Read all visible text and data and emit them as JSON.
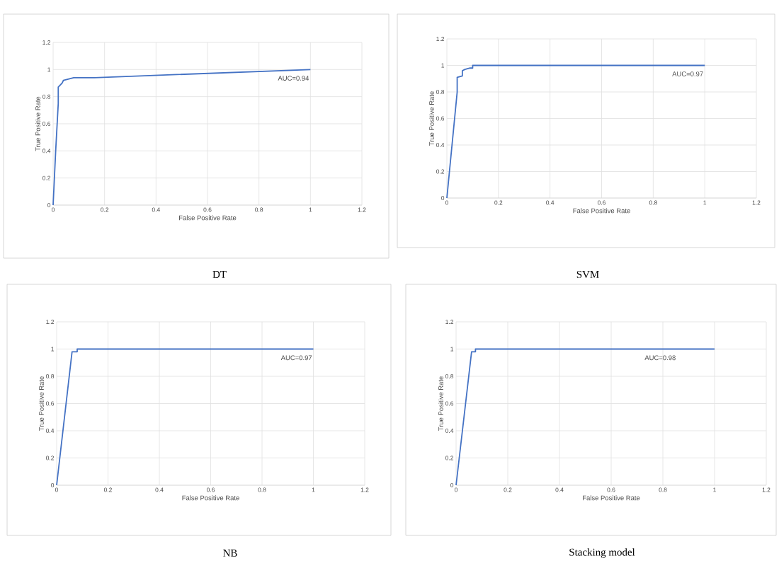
{
  "chart_data": [
    {
      "type": "line",
      "title": "DT",
      "xlabel": "False Positive Rate",
      "ylabel": "True Positive Rate",
      "annotations": [
        "AUC=0.94"
      ],
      "x": [
        0,
        0.01,
        0.02,
        0.02,
        0.03,
        0.035,
        0.04,
        0.06,
        0.08,
        0.16,
        1
      ],
      "values": [
        0,
        0.4,
        0.75,
        0.87,
        0.89,
        0.9,
        0.92,
        0.93,
        0.94,
        0.94,
        1
      ],
      "color": "#4472c4",
      "xlim": [
        0,
        1.2
      ],
      "ylim": [
        0,
        1.2
      ],
      "xticks": [
        0,
        0.2,
        0.4,
        0.6,
        0.8,
        1,
        1.2
      ],
      "yticks": [
        0,
        0.2,
        0.4,
        0.6,
        0.8,
        1,
        1.2
      ],
      "grid": true,
      "marker": "none"
    },
    {
      "type": "line",
      "title": "SVM",
      "xlabel": "False Positive Rate",
      "ylabel": "True Positive Rate",
      "annotations": [
        "AUC=0.97"
      ],
      "x": [
        0,
        0.04,
        0.04,
        0.06,
        0.06,
        0.07,
        0.09,
        0.1,
        0.1,
        1
      ],
      "values": [
        0,
        0.8,
        0.91,
        0.92,
        0.96,
        0.97,
        0.98,
        0.98,
        1,
        1
      ],
      "color": "#4472c4",
      "xlim": [
        0,
        1.2
      ],
      "ylim": [
        0,
        1.2
      ],
      "xticks": [
        0,
        0.2,
        0.4,
        0.6,
        0.8,
        1,
        1.2
      ],
      "yticks": [
        0,
        0.2,
        0.4,
        0.6,
        0.8,
        1,
        1.2
      ],
      "grid": true,
      "marker": "none"
    },
    {
      "type": "line",
      "title": "NB",
      "xlabel": "False Positive Rate",
      "ylabel": "True Positive Rate",
      "annotations": [
        "AUC=0.97"
      ],
      "x": [
        0,
        0.06,
        0.08,
        0.08,
        1
      ],
      "values": [
        0,
        0.98,
        0.98,
        1,
        1
      ],
      "color": "#4472c4",
      "xlim": [
        0,
        1.2
      ],
      "ylim": [
        0,
        1.2
      ],
      "xticks": [
        0,
        0.2,
        0.4,
        0.6,
        0.8,
        1,
        1.2
      ],
      "yticks": [
        0,
        0.2,
        0.4,
        0.6,
        0.8,
        1,
        1.2
      ],
      "grid": true,
      "marker": "none"
    },
    {
      "type": "line",
      "title": "Stacking model",
      "xlabel": "False Positive Rate",
      "ylabel": "True Positive Rate",
      "annotations": [
        "AUC=0.98"
      ],
      "x": [
        0,
        0.06,
        0.075,
        0.075,
        1
      ],
      "values": [
        0,
        0.98,
        0.98,
        1,
        1
      ],
      "color": "#4472c4",
      "xlim": [
        0,
        1.2
      ],
      "ylim": [
        0,
        1.2
      ],
      "xticks": [
        0,
        0.2,
        0.4,
        0.6,
        0.8,
        1,
        1.2
      ],
      "yticks": [
        0,
        0.2,
        0.4,
        0.6,
        0.8,
        1,
        1.2
      ],
      "grid": true,
      "marker": "none"
    }
  ]
}
